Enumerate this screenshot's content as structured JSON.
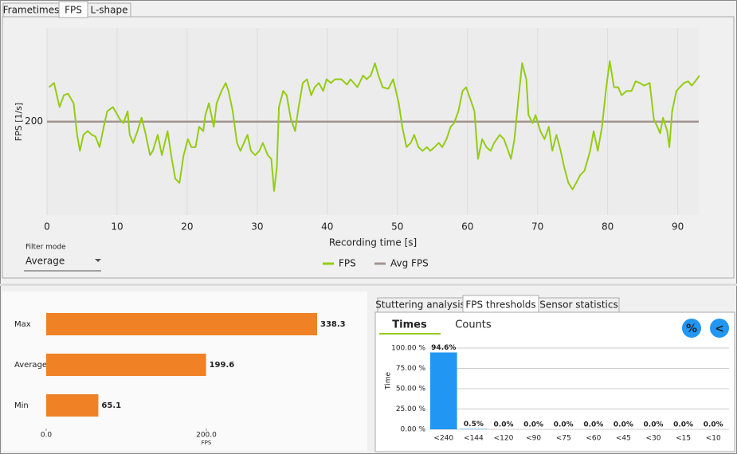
{
  "tabs": [
    "Frametimes",
    "FPS",
    "L-shape"
  ],
  "fps_chart": {
    "type": "line",
    "ylabel": "FPS [1/s]",
    "xlabel": "Recording time [s]",
    "xlim": [
      0,
      93
    ],
    "ylim": [
      25,
      375
    ],
    "xticks": [
      0,
      10,
      20,
      30,
      40,
      50,
      60,
      70,
      80,
      90
    ],
    "yticks": [
      200
    ],
    "grid": true,
    "x": [
      0.3,
      1.0,
      1.8,
      2.4,
      3.0,
      3.8,
      4.3,
      4.7,
      5.2,
      5.8,
      6.4,
      6.9,
      7.5,
      8.1,
      8.6,
      9.4,
      10.4,
      10.9,
      11.5,
      11.8,
      12.3,
      12.9,
      13.5,
      14.1,
      14.7,
      15.1,
      15.8,
      16.4,
      17.2,
      17.8,
      18.3,
      18.9,
      19.5,
      20.1,
      20.6,
      21.2,
      21.7,
      22.3,
      22.6,
      23.1,
      23.8,
      24.2,
      24.9,
      25.5,
      25.9,
      26.5,
      27.1,
      27.6,
      28.6,
      29.1,
      29.7,
      30.3,
      30.8,
      31.5,
      32.0,
      32.4,
      32.8,
      33.1,
      33.7,
      34.2,
      34.8,
      35.4,
      35.9,
      36.5,
      37.1,
      37.7,
      38.2,
      38.8,
      39.4,
      39.9,
      40.5,
      41.1,
      42.0,
      42.8,
      43.3,
      44.3,
      45.1,
      45.6,
      46.2,
      46.8,
      47.3,
      47.9,
      48.7,
      49.4,
      50.2,
      50.7,
      51.3,
      51.9,
      52.4,
      53.0,
      53.6,
      54.2,
      54.7,
      55.3,
      55.9,
      56.4,
      57.0,
      57.6,
      58.1,
      58.7,
      59.3,
      59.8,
      60.4,
      61.0,
      61.5,
      62.1,
      62.7,
      63.3,
      63.8,
      64.6,
      65.2,
      65.8,
      66.2,
      66.7,
      67.2,
      67.8,
      68.4,
      68.7,
      69.3,
      69.7,
      70.4,
      71.0,
      71.6,
      72.1,
      72.7,
      73.3,
      73.8,
      74.4,
      75.0,
      75.5,
      76.1,
      76.7,
      77.5,
      78.0,
      78.6,
      79.2,
      79.8,
      80.3,
      80.9,
      81.5,
      82.0,
      82.7,
      83.4,
      84.0,
      84.6,
      85.2,
      86.0,
      86.6,
      87.1,
      87.5,
      87.9,
      88.5,
      88.8,
      89.2,
      89.8,
      90.3,
      90.9,
      91.5,
      92.0,
      92.5,
      93.1
    ],
    "series": [
      {
        "name": "FPS",
        "color": "#94cc14",
        "values": [
          264,
          272,
          227,
          249,
          252,
          234,
          175,
          145,
          175,
          182,
          175,
          172,
          152,
          190,
          219,
          227,
          204,
          197,
          219,
          175,
          160,
          182,
          207,
          175,
          137,
          145,
          175,
          137,
          182,
          130,
          93,
          85,
          137,
          167,
          152,
          152,
          190,
          182,
          212,
          234,
          190,
          234,
          257,
          272,
          257,
          219,
          160,
          145,
          175,
          145,
          137,
          145,
          160,
          137,
          130,
          70,
          115,
          227,
          257,
          249,
          204,
          182,
          227,
          272,
          279,
          249,
          264,
          272,
          257,
          279,
          272,
          279,
          279,
          269,
          279,
          264,
          286,
          279,
          286,
          309,
          286,
          264,
          261,
          279,
          234,
          190,
          152,
          160,
          175,
          152,
          145,
          152,
          145,
          152,
          160,
          152,
          167,
          190,
          197,
          219,
          257,
          264,
          242,
          219,
          130,
          167,
          152,
          145,
          160,
          175,
          167,
          145,
          130,
          167,
          234,
          309,
          279,
          212,
          197,
          212,
          182,
          167,
          190,
          145,
          175,
          145,
          115,
          85,
          73,
          85,
          100,
          108,
          145,
          182,
          145,
          190,
          264,
          313,
          264,
          264,
          249,
          257,
          257,
          275,
          272,
          267,
          272,
          204,
          190,
          178,
          207,
          182,
          152,
          219,
          257,
          264,
          272,
          275,
          267,
          275,
          286
        ]
      },
      {
        "name": "Avg FPS",
        "color": "#a39490"
      }
    ]
  },
  "filter": {
    "label": "Filter mode",
    "value": "Average"
  },
  "stats_chart": {
    "type": "bar",
    "categories": [
      "Max",
      "Average",
      "Min"
    ],
    "values": [
      338.3,
      199.6,
      65.1
    ],
    "color": "#f08124",
    "xlim": [
      0,
      400
    ],
    "xticks": [
      {
        "value": 0,
        "label": "0.0"
      },
      {
        "value": 200,
        "label": "200.0"
      }
    ],
    "xlabel": "FPS"
  },
  "analysis_tabs": [
    "Stuttering analysis",
    "FPS thresholds",
    "Sensor statistics"
  ],
  "sub_tabs": [
    "Times",
    "Counts"
  ],
  "buttons": [
    "%",
    "<"
  ],
  "threshold_chart": {
    "type": "bar",
    "ylabel": "Time",
    "categories": [
      "<240",
      "<144",
      "<120",
      "<90",
      "<75",
      "<60",
      "<45",
      "<30",
      "<15",
      "<10"
    ],
    "values": [
      94.6,
      0.5,
      0.0,
      0.0,
      0.0,
      0.0,
      0.0,
      0.0,
      0.0,
      0.0
    ],
    "value_labels": [
      "94.6%",
      "0.5%",
      "0.0%",
      "0.0%",
      "0.0%",
      "0.0%",
      "0.0%",
      "0.0%",
      "0.0%",
      "0.0%"
    ],
    "color": "#2196f3",
    "ylim": [
      0,
      100
    ],
    "yticks": [
      {
        "value": 0,
        "label": "0.00 %"
      },
      {
        "value": 25,
        "label": "25.00 %"
      },
      {
        "value": 50,
        "label": "50.00 %"
      },
      {
        "value": 75,
        "label": "75.00 %"
      },
      {
        "value": 100,
        "label": "100.00 %"
      }
    ],
    "grid": true
  }
}
